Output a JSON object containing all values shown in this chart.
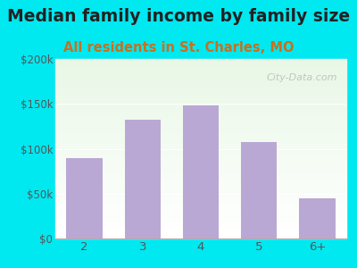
{
  "title": "Median family income by family size",
  "subtitle": "All residents in St. Charles, MO",
  "categories": [
    "2",
    "3",
    "4",
    "5",
    "6+"
  ],
  "values": [
    90000,
    132000,
    148000,
    107000,
    45000
  ],
  "bar_color": "#b9a8d4",
  "background_outer": "#00e8f0",
  "title_color": "#222222",
  "subtitle_color": "#c87020",
  "tick_color": "#555555",
  "ylim": [
    0,
    200000
  ],
  "yticks": [
    0,
    50000,
    100000,
    150000,
    200000
  ],
  "ytick_labels": [
    "$0",
    "$50k",
    "$100k",
    "$150k",
    "$200k"
  ],
  "watermark": "City-Data.com",
  "title_fontsize": 13.5,
  "subtitle_fontsize": 10.5
}
